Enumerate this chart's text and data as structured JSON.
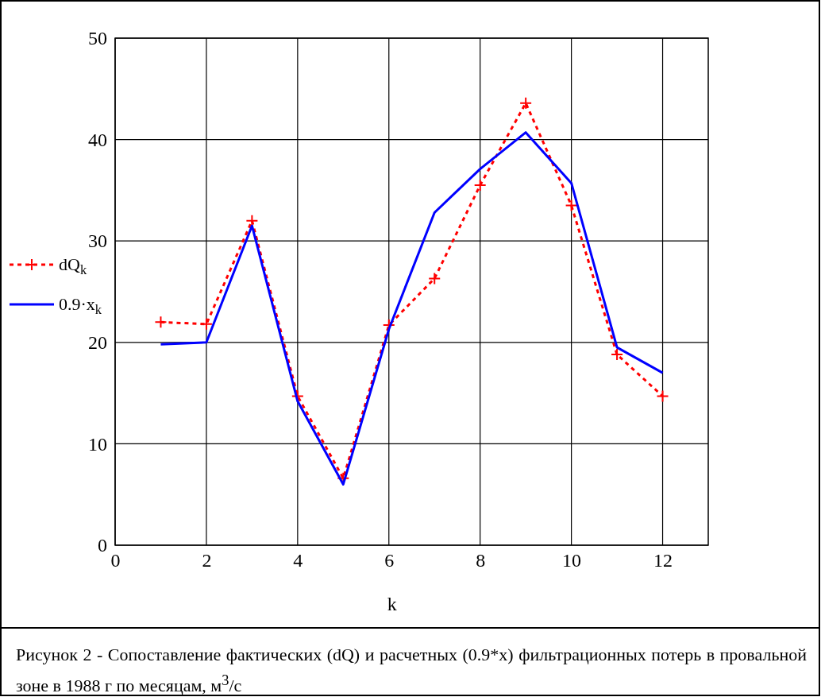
{
  "chart_data": {
    "type": "line",
    "xlabel": "k",
    "x": [
      1,
      2,
      3,
      4,
      5,
      6,
      7,
      8,
      9,
      10,
      11,
      12
    ],
    "series": [
      {
        "name": "dQ$_{k}$",
        "color": "#ff0000",
        "marker": "cross",
        "line_style": "dotted",
        "values": [
          22.0,
          21.8,
          32.0,
          14.7,
          6.6,
          21.7,
          26.3,
          35.5,
          43.6,
          33.5,
          18.8,
          14.7
        ]
      },
      {
        "name": "0.9·x$_{k}$",
        "color": "#0000ff",
        "marker": "none",
        "line_style": "solid",
        "values": [
          19.8,
          20.0,
          31.5,
          14.2,
          6.0,
          21.3,
          32.8,
          37.1,
          40.7,
          35.7,
          19.5,
          17.0
        ]
      }
    ],
    "xlim": [
      0,
      13
    ],
    "xticks": [
      0,
      2,
      4,
      6,
      8,
      10,
      12
    ],
    "ylim": [
      0,
      50
    ],
    "yticks": [
      0,
      10,
      20,
      30,
      40,
      50
    ],
    "grid": true,
    "legend": "left",
    "annotations": [
      "Рисунок 2 - Сопоставление фактических (dQ) и расчетных (0.9*x) фильтрационных потерь в провальной зоне в 1988 г по месяцам, м$^{3}$/с"
    ]
  }
}
